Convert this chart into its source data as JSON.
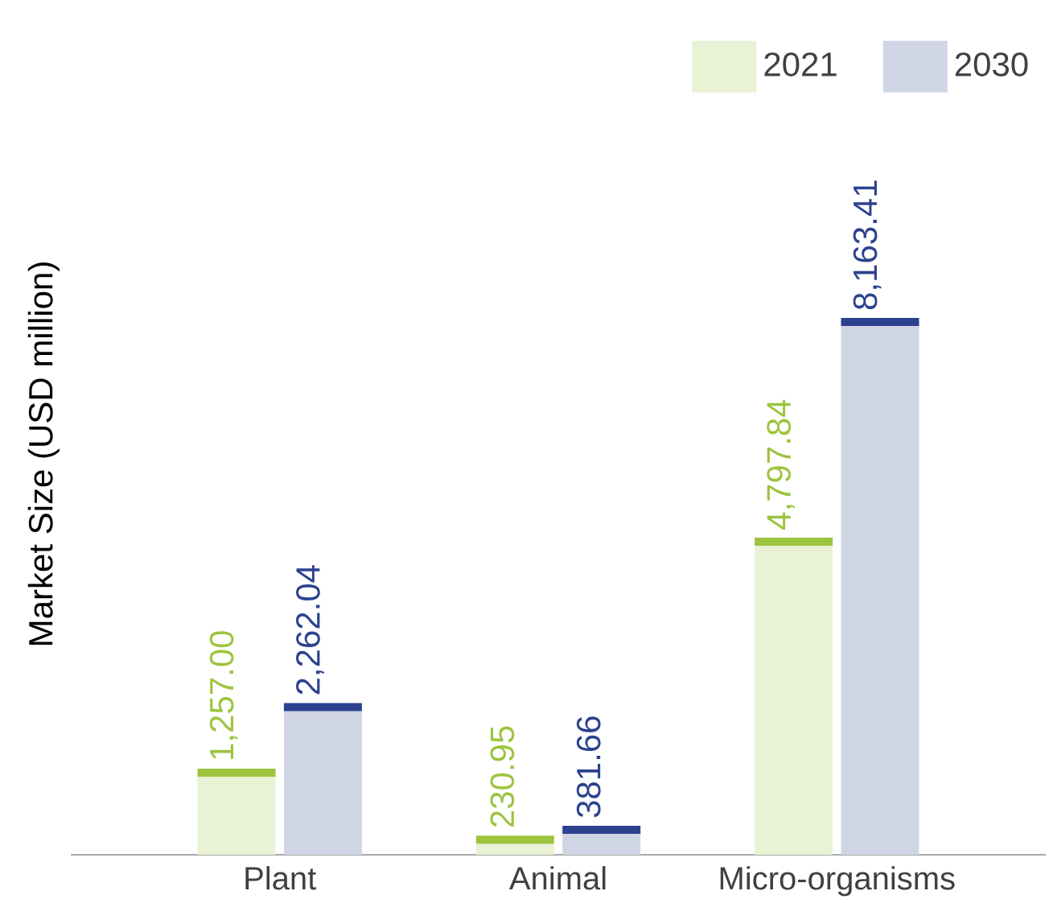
{
  "chart_data": {
    "type": "bar",
    "ylabel": "Market Size (USD million)",
    "categories": [
      "Plant",
      "Animal",
      "Micro-organisms"
    ],
    "series": [
      {
        "name": "2021",
        "color": "#e9f2d4",
        "values": [
          1257.0,
          230.95,
          4797.84
        ],
        "value_labels": [
          "1,257.00",
          "230.95",
          "4,797.84"
        ]
      },
      {
        "name": "2030",
        "color": "#d0d5e6",
        "values": [
          2262.04,
          381.66,
          8163.41
        ],
        "value_labels": [
          "2,262.04",
          "381.66",
          "8,163.41"
        ]
      }
    ],
    "legend": "top right"
  }
}
